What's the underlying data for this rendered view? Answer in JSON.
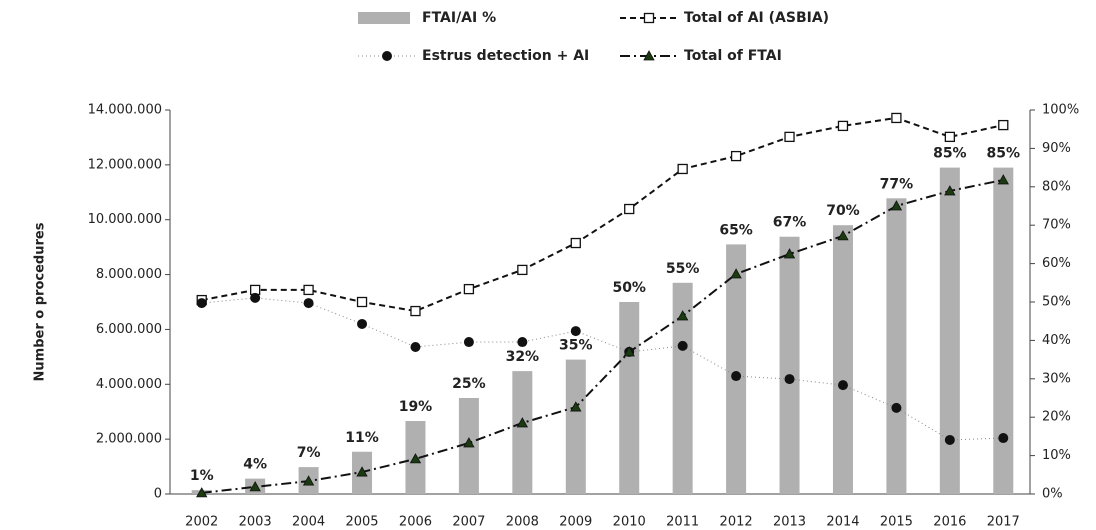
{
  "chart_data": {
    "type": "bar-line",
    "y_label": "Number o procedures",
    "categories": [
      "2002",
      "2003",
      "2004",
      "2005",
      "2006",
      "2007",
      "2008",
      "2009",
      "2010",
      "2011",
      "2012",
      "2013",
      "2014",
      "2015",
      "2016",
      "2017"
    ],
    "series": [
      {
        "name": "FTAI/AI %",
        "color": "#b0b0b0",
        "axis": "y2",
        "values": [
          1,
          4,
          7,
          11,
          19,
          25,
          32,
          35,
          50,
          55,
          65,
          67,
          70,
          77,
          85,
          85
        ],
        "value_labels": [
          "1%",
          "4%",
          "7%",
          "11%",
          "19%",
          "25%",
          "32%",
          "35%",
          "50%",
          "55%",
          "65%",
          "67%",
          "70%",
          "77%",
          "85%",
          "85%"
        ]
      },
      {
        "name": "Total of AI (ASBIA)",
        "color": "#111111",
        "values": [
          7070000,
          7440000,
          7440000,
          7000000,
          6670000,
          7470000,
          8170000,
          9150000,
          10390000,
          11850000,
          12320000,
          13020000,
          13420000,
          13710000,
          13020000,
          13450000
        ]
      },
      {
        "name": "Estrus detection + AI",
        "color": "#111111",
        "values": [
          6960000,
          7150000,
          6960000,
          6200000,
          5360000,
          5540000,
          5540000,
          5940000,
          5180000,
          5400000,
          4300000,
          4190000,
          3970000,
          3140000,
          1970000,
          2040000
        ]
      },
      {
        "name": "Total of FTAI",
        "color": "#1a3a10",
        "values": [
          40000,
          260000,
          470000,
          800000,
          1280000,
          1860000,
          2590000,
          3170000,
          5180000,
          6490000,
          8020000,
          8750000,
          9410000,
          10500000,
          11050000,
          11450000
        ]
      }
    ],
    "ylim": [
      0,
      14000000
    ],
    "yticks": [
      0,
      {
        "value": 2000000,
        "label": "2.000.000"
      },
      {
        "value": 4000000,
        "label": "4.000.000"
      },
      {
        "value": 6000000,
        "label": "6.000.000"
      },
      {
        "value": 8000000,
        "label": "8.000.000"
      },
      {
        "value": 10000000,
        "label": "10.000.000"
      },
      {
        "value": 12000000,
        "label": "12.000.000"
      },
      {
        "value": 14000000,
        "label": "14.000.000"
      }
    ],
    "y2lim": [
      0,
      100
    ],
    "y2ticks": [
      {
        "value": 0,
        "label": "0%"
      },
      {
        "value": 10,
        "label": "10%"
      },
      {
        "value": 20,
        "label": "20%"
      },
      {
        "value": 30,
        "label": "30%"
      },
      {
        "value": 40,
        "label": "40%"
      },
      {
        "value": 50,
        "label": "50%"
      },
      {
        "value": 60,
        "label": "60%"
      },
      {
        "value": 70,
        "label": "70%"
      },
      {
        "value": 80,
        "label": "80%"
      },
      {
        "value": 90,
        "label": "90%"
      },
      {
        "value": {
          "value": 100,
          "label": "100%"
        },
        "label": "100%"
      }
    ]
  }
}
